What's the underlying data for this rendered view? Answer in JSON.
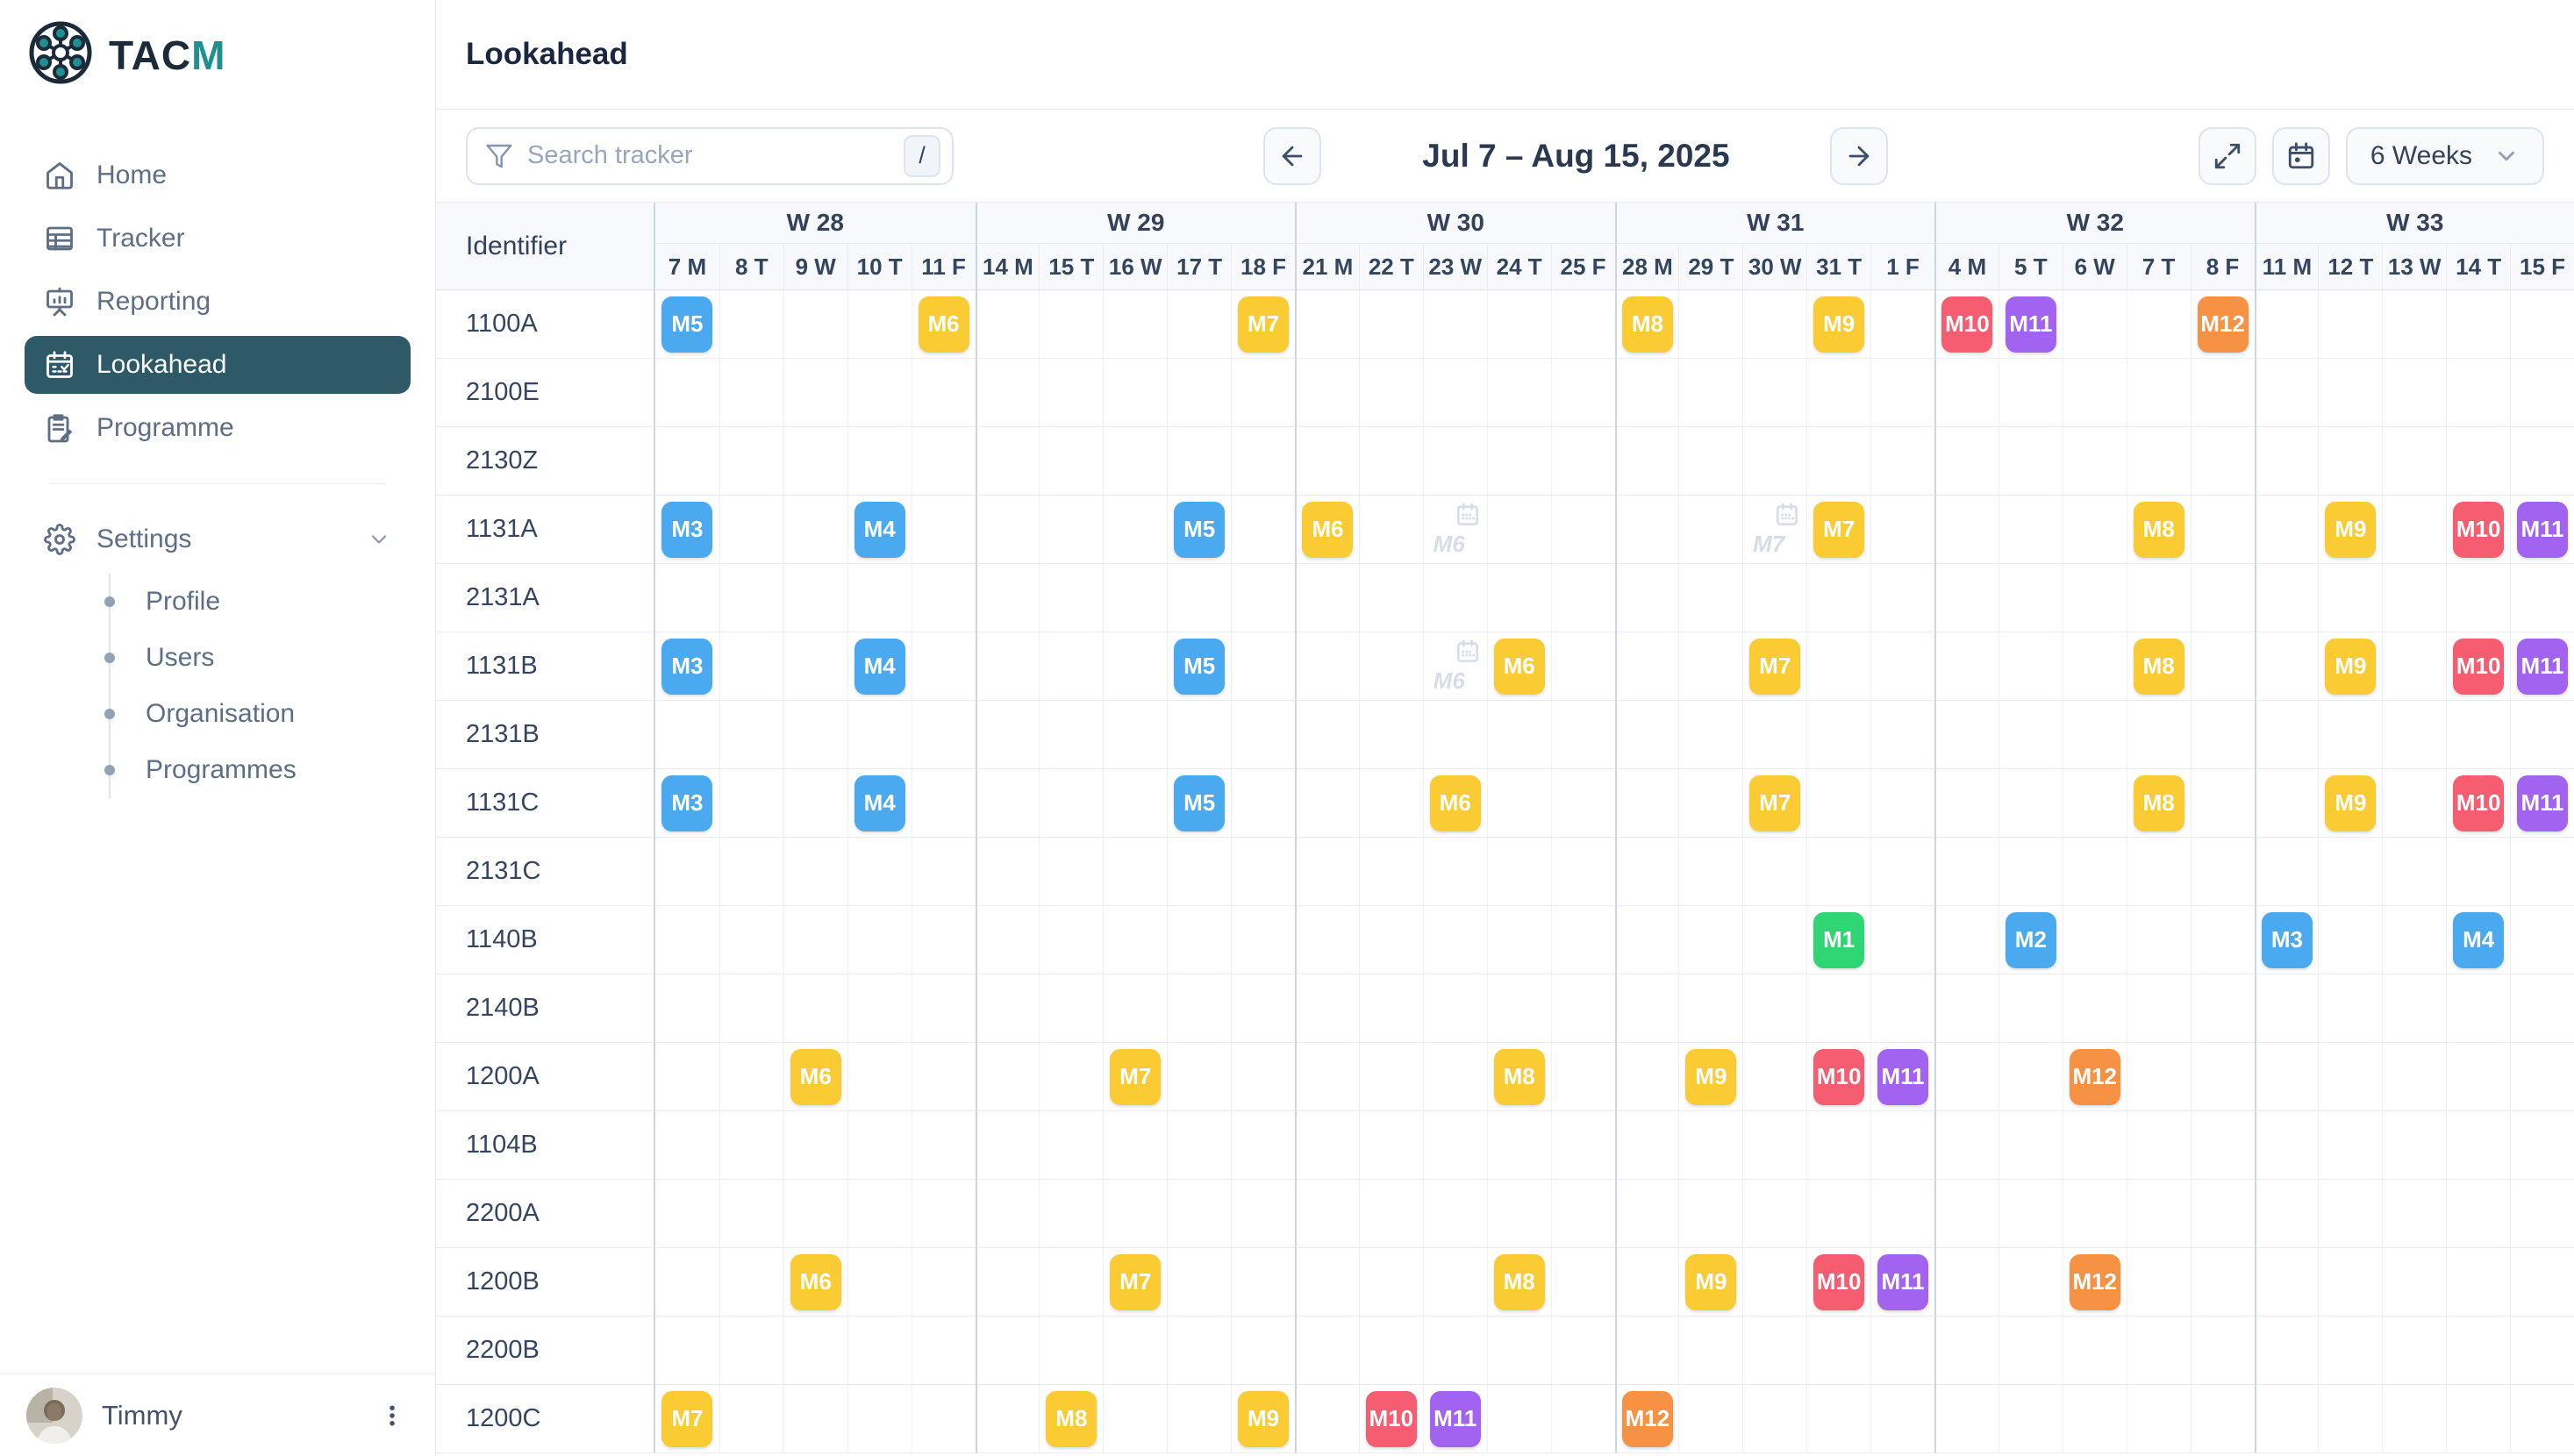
{
  "sidebar": {
    "logo": {
      "primary": "TAC",
      "accent": "M"
    },
    "nav": [
      {
        "label": "Home",
        "icon": "home-icon",
        "active": false
      },
      {
        "label": "Tracker",
        "icon": "tracker-icon",
        "active": false
      },
      {
        "label": "Reporting",
        "icon": "reporting-icon",
        "active": false
      },
      {
        "label": "Lookahead",
        "icon": "lookahead-icon",
        "active": true
      },
      {
        "label": "Programme",
        "icon": "programme-icon",
        "active": false
      }
    ],
    "settings": {
      "label": "Settings",
      "icon": "gear-icon",
      "chevron": "chevron-down-icon"
    },
    "settings_children": [
      {
        "label": "Profile"
      },
      {
        "label": "Users"
      },
      {
        "label": "Organisation"
      },
      {
        "label": "Programmes"
      }
    ],
    "user": {
      "name": "Timmy"
    }
  },
  "header": {
    "title": "Lookahead"
  },
  "toolbar": {
    "search_placeholder": "Search tracker",
    "search_value": "",
    "search_shortcut": "/",
    "date_range": "Jul 7 – Aug 15, 2025",
    "range_selector": "6 Weeks"
  },
  "grid": {
    "identifier_header": "Identifier",
    "weeks": [
      {
        "label": "W 28",
        "days": [
          "7 M",
          "8 T",
          "9 W",
          "10 T",
          "11 F"
        ]
      },
      {
        "label": "W 29",
        "days": [
          "14 M",
          "15 T",
          "16 W",
          "17 T",
          "18 F"
        ]
      },
      {
        "label": "W 30",
        "days": [
          "21 M",
          "22 T",
          "23 W",
          "24 T",
          "25 F"
        ]
      },
      {
        "label": "W 31",
        "days": [
          "28 M",
          "29 T",
          "30 W",
          "31 T",
          "1 F"
        ]
      },
      {
        "label": "W 32",
        "days": [
          "4 M",
          "5 T",
          "6 W",
          "7 T",
          "8 F"
        ]
      },
      {
        "label": "W 33",
        "days": [
          "11 M",
          "12 T",
          "13 W",
          "14 T",
          "15 F"
        ]
      }
    ],
    "rows": [
      {
        "id": "1100A",
        "milestones": [
          {
            "label": "M5",
            "col": 0,
            "color": "blue"
          },
          {
            "label": "M6",
            "col": 4,
            "color": "yellow"
          },
          {
            "label": "M7",
            "col": 9,
            "color": "yellow"
          },
          {
            "label": "M8",
            "col": 15,
            "color": "yellow"
          },
          {
            "label": "M9",
            "col": 18,
            "color": "yellow"
          },
          {
            "label": "M10",
            "col": 20,
            "color": "red"
          },
          {
            "label": "M11",
            "col": 21,
            "color": "purple"
          },
          {
            "label": "M12",
            "col": 24,
            "color": "orange"
          }
        ]
      },
      {
        "id": "2100E",
        "milestones": []
      },
      {
        "id": "2130Z",
        "milestones": []
      },
      {
        "id": "1131A",
        "milestones": [
          {
            "label": "M3",
            "col": 0,
            "color": "blue"
          },
          {
            "label": "M4",
            "col": 3,
            "color": "blue"
          },
          {
            "label": "M5",
            "col": 8,
            "color": "blue"
          },
          {
            "label": "M6",
            "col": 10,
            "color": "yellow"
          },
          {
            "label": "M6",
            "col": 12,
            "ghost": true
          },
          {
            "label": "M7",
            "col": 17,
            "ghost": true
          },
          {
            "label": "M7",
            "col": 18,
            "color": "yellow"
          },
          {
            "label": "M8",
            "col": 23,
            "color": "yellow"
          },
          {
            "label": "M9",
            "col": 26,
            "color": "yellow"
          },
          {
            "label": "M10",
            "col": 28,
            "color": "red"
          },
          {
            "label": "M11",
            "col": 29,
            "color": "purple"
          }
        ]
      },
      {
        "id": "2131A",
        "milestones": []
      },
      {
        "id": "1131B",
        "milestones": [
          {
            "label": "M3",
            "col": 0,
            "color": "blue"
          },
          {
            "label": "M4",
            "col": 3,
            "color": "blue"
          },
          {
            "label": "M5",
            "col": 8,
            "color": "blue"
          },
          {
            "label": "M6",
            "col": 12,
            "ghost": true
          },
          {
            "label": "M6",
            "col": 13,
            "color": "yellow"
          },
          {
            "label": "M7",
            "col": 17,
            "color": "yellow"
          },
          {
            "label": "M8",
            "col": 23,
            "color": "yellow"
          },
          {
            "label": "M9",
            "col": 26,
            "color": "yellow"
          },
          {
            "label": "M10",
            "col": 28,
            "color": "red"
          },
          {
            "label": "M11",
            "col": 29,
            "color": "purple"
          }
        ]
      },
      {
        "id": "2131B",
        "milestones": []
      },
      {
        "id": "1131C",
        "milestones": [
          {
            "label": "M3",
            "col": 0,
            "color": "blue"
          },
          {
            "label": "M4",
            "col": 3,
            "color": "blue"
          },
          {
            "label": "M5",
            "col": 8,
            "color": "blue"
          },
          {
            "label": "M6",
            "col": 12,
            "color": "yellow"
          },
          {
            "label": "M7",
            "col": 17,
            "color": "yellow"
          },
          {
            "label": "M8",
            "col": 23,
            "color": "yellow"
          },
          {
            "label": "M9",
            "col": 26,
            "color": "yellow"
          },
          {
            "label": "M10",
            "col": 28,
            "color": "red"
          },
          {
            "label": "M11",
            "col": 29,
            "color": "purple"
          }
        ]
      },
      {
        "id": "2131C",
        "milestones": []
      },
      {
        "id": "1140B",
        "milestones": [
          {
            "label": "M1",
            "col": 18,
            "color": "green"
          },
          {
            "label": "M2",
            "col": 21,
            "color": "blue"
          },
          {
            "label": "M3",
            "col": 25,
            "color": "blue"
          },
          {
            "label": "M4",
            "col": 28,
            "color": "blue"
          }
        ]
      },
      {
        "id": "2140B",
        "milestones": []
      },
      {
        "id": "1200A",
        "milestones": [
          {
            "label": "M6",
            "col": 2,
            "color": "yellow"
          },
          {
            "label": "M7",
            "col": 7,
            "color": "yellow"
          },
          {
            "label": "M8",
            "col": 13,
            "color": "yellow"
          },
          {
            "label": "M9",
            "col": 16,
            "color": "yellow"
          },
          {
            "label": "M10",
            "col": 18,
            "color": "red"
          },
          {
            "label": "M11",
            "col": 19,
            "color": "purple"
          },
          {
            "label": "M12",
            "col": 22,
            "color": "orange"
          }
        ]
      },
      {
        "id": "1104B",
        "milestones": []
      },
      {
        "id": "2200A",
        "milestones": []
      },
      {
        "id": "1200B",
        "milestones": [
          {
            "label": "M6",
            "col": 2,
            "color": "yellow"
          },
          {
            "label": "M7",
            "col": 7,
            "color": "yellow"
          },
          {
            "label": "M8",
            "col": 13,
            "color": "yellow"
          },
          {
            "label": "M9",
            "col": 16,
            "color": "yellow"
          },
          {
            "label": "M10",
            "col": 18,
            "color": "red"
          },
          {
            "label": "M11",
            "col": 19,
            "color": "purple"
          },
          {
            "label": "M12",
            "col": 22,
            "color": "orange"
          }
        ]
      },
      {
        "id": "2200B",
        "milestones": []
      },
      {
        "id": "1200C",
        "milestones": [
          {
            "label": "M7",
            "col": 0,
            "color": "yellow"
          },
          {
            "label": "M8",
            "col": 6,
            "color": "yellow"
          },
          {
            "label": "M9",
            "col": 9,
            "color": "yellow"
          },
          {
            "label": "M10",
            "col": 11,
            "color": "red"
          },
          {
            "label": "M11",
            "col": 12,
            "color": "purple"
          },
          {
            "label": "M12",
            "col": 15,
            "color": "orange"
          }
        ]
      }
    ]
  },
  "colors": {
    "blue": "#4BA9EF",
    "yellow": "#FBCB33",
    "green": "#2FD673",
    "red": "#F75D71",
    "purple": "#A163F0",
    "orange": "#F79245",
    "ghost": "#D6DDE8",
    "active_nav": "#2D5A66",
    "brand_teal": "#1F8F8F",
    "brand_navy": "#1C2B3A"
  }
}
